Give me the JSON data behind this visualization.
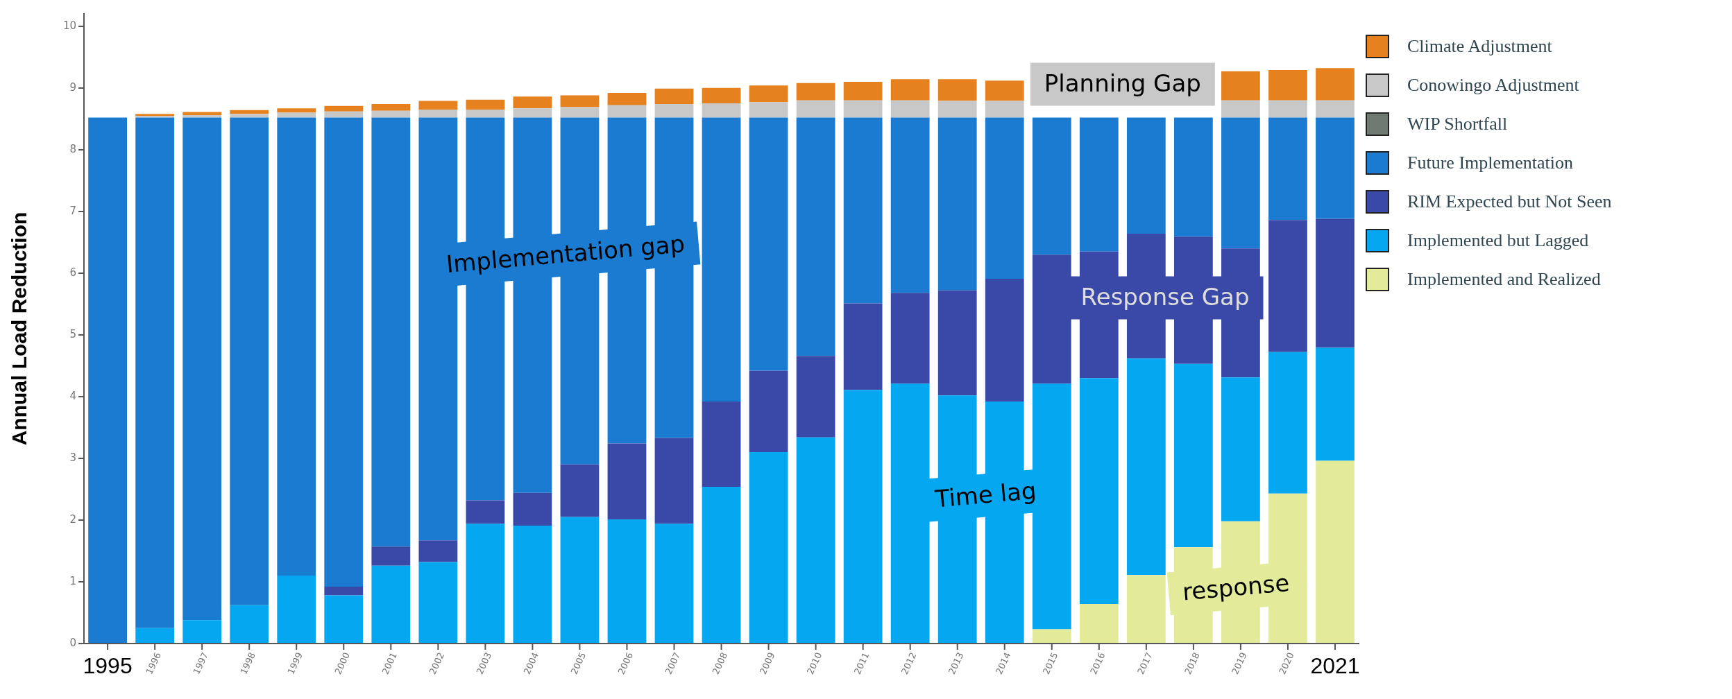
{
  "chart_data": {
    "type": "bar",
    "stacked": true,
    "ylabel": "Annual Load Reduction",
    "ylim": [
      0,
      10.2
    ],
    "yticks": [
      0,
      1,
      2,
      3,
      4,
      5,
      6,
      7,
      8,
      9,
      10
    ],
    "grid": false,
    "legend": "right",
    "categories": [
      "1995",
      "1996",
      "1997",
      "1998",
      "1999",
      "2000",
      "2001",
      "2002",
      "2003",
      "2004",
      "2005",
      "2006",
      "2007",
      "2008",
      "2009",
      "2010",
      "2011",
      "2012",
      "2013",
      "2014",
      "2015",
      "2016",
      "2017",
      "2018",
      "2019",
      "2020",
      "2021"
    ],
    "series": [
      {
        "name": "Implemented and Realized",
        "color": "#e3eb9a",
        "values": [
          0,
          0,
          0,
          0,
          0,
          0,
          0,
          0,
          0,
          0,
          0,
          0,
          0,
          0,
          0,
          0,
          0,
          0,
          0,
          0,
          0.23,
          0.64,
          1.11,
          1.56,
          1.98,
          2.43,
          2.96
        ]
      },
      {
        "name": "Implemented but Lagged",
        "color": "#04a7f0",
        "values": [
          0,
          0.25,
          0.38,
          0.62,
          1.1,
          0.78,
          1.26,
          1.32,
          1.94,
          1.91,
          2.05,
          2.01,
          1.94,
          2.54,
          3.1,
          3.34,
          4.11,
          4.21,
          4.02,
          3.92,
          3.98,
          3.66,
          3.51,
          2.97,
          2.33,
          2.29,
          1.83
        ]
      },
      {
        "name": "RIM Expected but Not Seen",
        "color": "#3a48a8",
        "values": [
          0,
          0,
          0,
          0,
          0,
          0.14,
          0.31,
          0.35,
          0.38,
          0.53,
          0.85,
          1.23,
          1.39,
          1.38,
          1.32,
          1.32,
          1.4,
          1.47,
          1.7,
          1.99,
          2.09,
          2.05,
          2.02,
          2.06,
          2.09,
          2.14,
          2.09
        ]
      },
      {
        "name": "Future Implementation",
        "color": "#1a7bd0",
        "values": [
          8.52,
          8.27,
          8.14,
          7.9,
          7.42,
          7.6,
          6.95,
          6.85,
          6.2,
          6.08,
          5.62,
          5.28,
          5.19,
          4.6,
          4.1,
          3.86,
          3.01,
          2.84,
          2.8,
          2.61,
          2.22,
          2.17,
          1.88,
          1.93,
          2.12,
          1.66,
          1.64
        ]
      },
      {
        "name": "WIP Shortfall",
        "color": "#6f7a73",
        "values": [
          0,
          0,
          0,
          0,
          0,
          0,
          0,
          0,
          0,
          0,
          0,
          0,
          0,
          0,
          0,
          0,
          0,
          0,
          0,
          0,
          0,
          0,
          0,
          0,
          0,
          0,
          0
        ]
      },
      {
        "name": "Conowingo Adjustment",
        "color": "#c8c8c8",
        "values": [
          0,
          0.03,
          0.04,
          0.06,
          0.08,
          0.1,
          0.11,
          0.13,
          0.13,
          0.15,
          0.17,
          0.2,
          0.22,
          0.23,
          0.25,
          0.28,
          0.28,
          0.28,
          0.27,
          0.27,
          null,
          null,
          null,
          null,
          0.28,
          0.28,
          0.28
        ]
      },
      {
        "name": "Climate Adjustment",
        "color": "#e5821f",
        "values": [
          0,
          0.03,
          0.05,
          0.06,
          0.07,
          0.09,
          0.11,
          0.14,
          0.16,
          0.19,
          0.19,
          0.2,
          0.25,
          0.25,
          0.27,
          0.28,
          0.3,
          0.34,
          0.35,
          0.33,
          null,
          null,
          null,
          null,
          0.47,
          0.49,
          0.52
        ]
      }
    ],
    "annotations": [
      "Implementation gap",
      "Time lag",
      "Planning Gap",
      "Response Gap",
      "response"
    ]
  }
}
